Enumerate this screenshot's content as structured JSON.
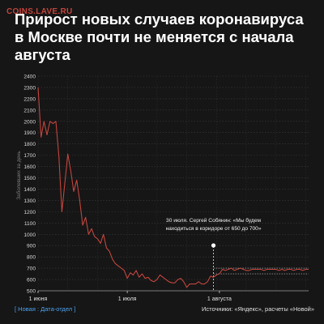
{
  "watermark": "COINS.LAVE.RU",
  "title": "Прирост новых случаев коронавируса в Москве почти не меняется с начала августа",
  "footer": {
    "left": "[ Новая : Дата-отдел ]",
    "right": "Источники: «Яндекс», расчеты «Новой»"
  },
  "colors": {
    "line": "#c2453d",
    "background": "#161616",
    "accent_link": "#4da3f0"
  },
  "chart_data": {
    "type": "line",
    "title": "Прирост новых случаев коронавируса в Москве почти не меняется с начала августа",
    "xlabel": "",
    "ylabel": "Заболевших за день",
    "ylim": [
      500,
      2400
    ],
    "yticks": [
      500,
      600,
      700,
      800,
      900,
      1000,
      1100,
      1200,
      1300,
      1400,
      1500,
      1600,
      1700,
      1800,
      1900,
      2000,
      2100,
      2200,
      2300,
      2400
    ],
    "xlim": [
      "2020-06-01",
      "2020-08-31"
    ],
    "xticks": [
      {
        "date": "2020-06-01",
        "label": "1 июня"
      },
      {
        "date": "2020-07-01",
        "label": "1 июля"
      },
      {
        "date": "2020-08-01",
        "label": "1 августа"
      }
    ],
    "grid": true,
    "annotation": {
      "date": "2020-07-30",
      "lines": [
        "30 июля. Сергей Собянин: «Мы будем",
        "находиться в коридоре от 650 до 700»"
      ],
      "range": [
        650,
        700
      ]
    },
    "series": [
      {
        "x": [
          "2020-06-01",
          "2020-06-02",
          "2020-06-03",
          "2020-06-04",
          "2020-06-05",
          "2020-06-06",
          "2020-06-07",
          "2020-06-08",
          "2020-06-09",
          "2020-06-10",
          "2020-06-11",
          "2020-06-12",
          "2020-06-13",
          "2020-06-14",
          "2020-06-15",
          "2020-06-16",
          "2020-06-17",
          "2020-06-18",
          "2020-06-19",
          "2020-06-20",
          "2020-06-21",
          "2020-06-22",
          "2020-06-23",
          "2020-06-24",
          "2020-06-25",
          "2020-06-26",
          "2020-06-27",
          "2020-06-28",
          "2020-06-29",
          "2020-06-30",
          "2020-07-01",
          "2020-07-02",
          "2020-07-03",
          "2020-07-04",
          "2020-07-05",
          "2020-07-06",
          "2020-07-07",
          "2020-07-08",
          "2020-07-09",
          "2020-07-10",
          "2020-07-11",
          "2020-07-12",
          "2020-07-13",
          "2020-07-14",
          "2020-07-15",
          "2020-07-16",
          "2020-07-17",
          "2020-07-18",
          "2020-07-19",
          "2020-07-20",
          "2020-07-21",
          "2020-07-22",
          "2020-07-23",
          "2020-07-24",
          "2020-07-25",
          "2020-07-26",
          "2020-07-27",
          "2020-07-28",
          "2020-07-29",
          "2020-07-30",
          "2020-07-31",
          "2020-08-01",
          "2020-08-02",
          "2020-08-03",
          "2020-08-04",
          "2020-08-05",
          "2020-08-06",
          "2020-08-07",
          "2020-08-08",
          "2020-08-09",
          "2020-08-10",
          "2020-08-11",
          "2020-08-12",
          "2020-08-13",
          "2020-08-14",
          "2020-08-15",
          "2020-08-16",
          "2020-08-17",
          "2020-08-18",
          "2020-08-19",
          "2020-08-20",
          "2020-08-21",
          "2020-08-22",
          "2020-08-23",
          "2020-08-24",
          "2020-08-25",
          "2020-08-26",
          "2020-08-27",
          "2020-08-28",
          "2020-08-29",
          "2020-08-30",
          "2020-08-31"
        ],
        "values": [
          2300,
          1860,
          2000,
          1880,
          2000,
          1980,
          2000,
          1690,
          1200,
          1450,
          1710,
          1560,
          1380,
          1480,
          1300,
          1080,
          1150,
          1000,
          1050,
          980,
          960,
          920,
          1000,
          880,
          850,
          780,
          740,
          720,
          700,
          680,
          610,
          660,
          640,
          680,
          620,
          650,
          610,
          620,
          590,
          580,
          600,
          640,
          620,
          600,
          580,
          570,
          570,
          600,
          610,
          580,
          530,
          560,
          560,
          560,
          580,
          560,
          560,
          580,
          630,
          620,
          640,
          650,
          690,
          680,
          690,
          700,
          680,
          690,
          700,
          690,
          680,
          680,
          690,
          690,
          690,
          690,
          680,
          690,
          690,
          690,
          690,
          680,
          690,
          680,
          690,
          690,
          680,
          690,
          690,
          680,
          690,
          690
        ]
      }
    ]
  }
}
